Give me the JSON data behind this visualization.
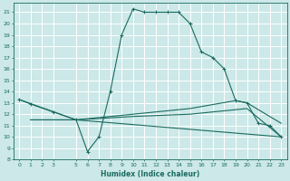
{
  "xlabel": "Humidex (Indice chaleur)",
  "bg_color": "#cce8e8",
  "grid_color": "#ffffff",
  "line_color": "#1a6b60",
  "xlim": [
    -0.5,
    23.5
  ],
  "ylim": [
    8,
    21.8
  ],
  "xticks": [
    0,
    1,
    2,
    3,
    5,
    6,
    7,
    8,
    9,
    10,
    11,
    12,
    13,
    14,
    15,
    16,
    17,
    18,
    19,
    20,
    21,
    22,
    23
  ],
  "yticks": [
    8,
    9,
    10,
    11,
    12,
    13,
    14,
    15,
    16,
    17,
    18,
    19,
    20,
    21
  ],
  "series": [
    [
      0,
      13.3
    ],
    [
      1,
      12.9
    ],
    [
      3,
      12.2
    ],
    [
      5,
      11.5
    ],
    [
      6,
      8.7
    ],
    [
      7,
      10.0
    ],
    [
      8,
      14.0
    ],
    [
      9,
      19.0
    ],
    [
      10,
      21.3
    ],
    [
      11,
      21.0
    ],
    [
      12,
      21.0
    ],
    [
      13,
      21.0
    ],
    [
      14,
      21.0
    ],
    [
      15,
      20.0
    ],
    [
      16,
      17.5
    ],
    [
      17,
      17.0
    ],
    [
      18,
      16.0
    ],
    [
      19,
      13.2
    ],
    [
      20,
      13.0
    ],
    [
      21,
      11.2
    ],
    [
      22,
      11.0
    ],
    [
      23,
      10.0
    ]
  ],
  "line2": [
    [
      0,
      13.3
    ],
    [
      5,
      11.5
    ],
    [
      23,
      10.0
    ]
  ],
  "line3": [
    [
      1,
      11.5
    ],
    [
      5,
      11.5
    ],
    [
      10,
      12.0
    ],
    [
      15,
      12.5
    ],
    [
      19,
      13.2
    ],
    [
      20,
      13.0
    ],
    [
      23,
      11.2
    ]
  ],
  "line4": [
    [
      1,
      11.5
    ],
    [
      5,
      11.5
    ],
    [
      10,
      11.8
    ],
    [
      15,
      12.0
    ],
    [
      20,
      12.5
    ],
    [
      23,
      10.0
    ]
  ]
}
